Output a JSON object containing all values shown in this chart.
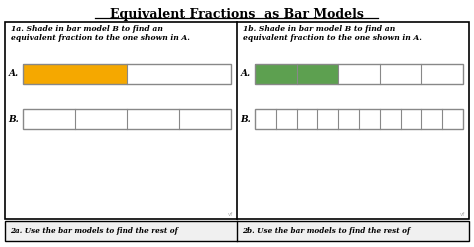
{
  "title": "Equivalent Fractions  as Bar Models",
  "bg_color": "#ffffff",
  "left_label_1a": "1a. Shade in bar model B to find an\nequivalent fraction to the one shown in A.",
  "left_label_1b": "1b. Shade in bar model B to find an\nequivalent fraction to the one shown in A.",
  "bottom_text_left": "2a. Use the bar models to find the rest of",
  "bottom_text_right": "2b. Use the bar models to find the rest of",
  "orange_color": "#F5A800",
  "green_color": "#5DA050",
  "bar_outline": "#888888",
  "panel_outline": "#000000"
}
